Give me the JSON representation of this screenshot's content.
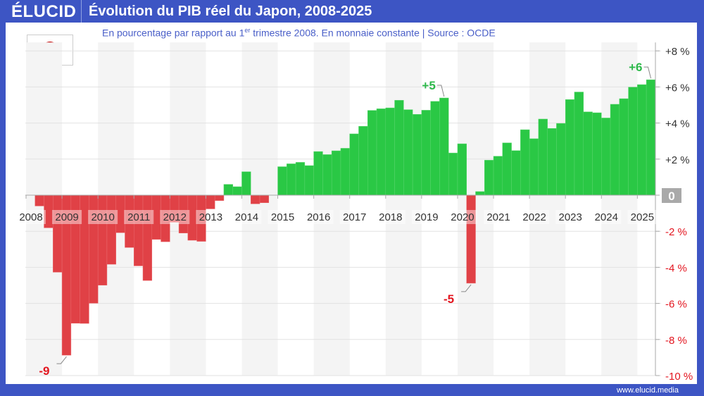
{
  "header": {
    "logo": "ÉLUCID",
    "title": "Évolution du PIB réel du Japon, 2008-2025"
  },
  "subtitle": {
    "text_before": "En pourcentage par rapport au 1",
    "superscript": "er",
    "text_after": " trimestre 2008. En monnaie constante  |  Source : OCDE"
  },
  "flag": "japan-flag",
  "footer": "www.elucid.media",
  "colors": {
    "brand": "#3d55c4",
    "positive": "#2ac845",
    "negative": "#e04146",
    "text_positive": "#2db84a",
    "text_negative": "#e3151f"
  },
  "chart_data": {
    "type": "bar",
    "frequency": "quarterly",
    "start": "2008 Q1",
    "end": "2025 Q2",
    "ylim": [
      -10,
      8
    ],
    "yticks": [
      8,
      6,
      4,
      2,
      0,
      -2,
      -4,
      -6,
      -8,
      -10
    ],
    "ytick_labels": [
      "+8 %",
      "+6 %",
      "+4 %",
      "+2 %",
      "0",
      "-2 %",
      "-4 %",
      "-6 %",
      "-8 %",
      "-10 %"
    ],
    "xtick_labels": [
      "2008",
      "2009",
      "2010",
      "2011",
      "2012",
      "2013",
      "2014",
      "2015",
      "2016",
      "2017",
      "2018",
      "2019",
      "2020",
      "2021",
      "2022",
      "2023",
      "2024",
      "2025"
    ],
    "grid": true,
    "values": [
      0,
      -0.6,
      -1.81,
      -4.27,
      -8.87,
      -7.1,
      -7.11,
      -5.99,
      -4.99,
      -3.83,
      -2.08,
      -2.9,
      -3.92,
      -4.73,
      -2.45,
      -2.58,
      -1.5,
      -2.1,
      -2.5,
      -2.56,
      -0.76,
      -0.3,
      0.6,
      0.47,
      1.3,
      -0.48,
      -0.42,
      0,
      1.58,
      1.74,
      1.82,
      1.64,
      2.42,
      2.25,
      2.46,
      2.6,
      3.4,
      3.82,
      4.7,
      4.79,
      4.84,
      5.26,
      4.74,
      4.48,
      4.71,
      5.2,
      5.39,
      2.34,
      2.85,
      -4.88,
      0.2,
      1.94,
      2.16,
      2.9,
      2.47,
      3.63,
      3.13,
      4.22,
      3.7,
      3.98,
      5.3,
      5.72,
      4.62,
      4.57,
      4.28,
      5.04,
      5.35,
      5.99,
      6.13,
      6.4
    ],
    "annotations": [
      {
        "label": "-9",
        "quarter_index": 4,
        "sign": "neg"
      },
      {
        "label": "+5",
        "quarter_index": 46,
        "sign": "pos"
      },
      {
        "label": "-5",
        "quarter_index": 49,
        "sign": "neg"
      },
      {
        "label": "+6",
        "quarter_index": 69,
        "sign": "pos"
      }
    ]
  }
}
